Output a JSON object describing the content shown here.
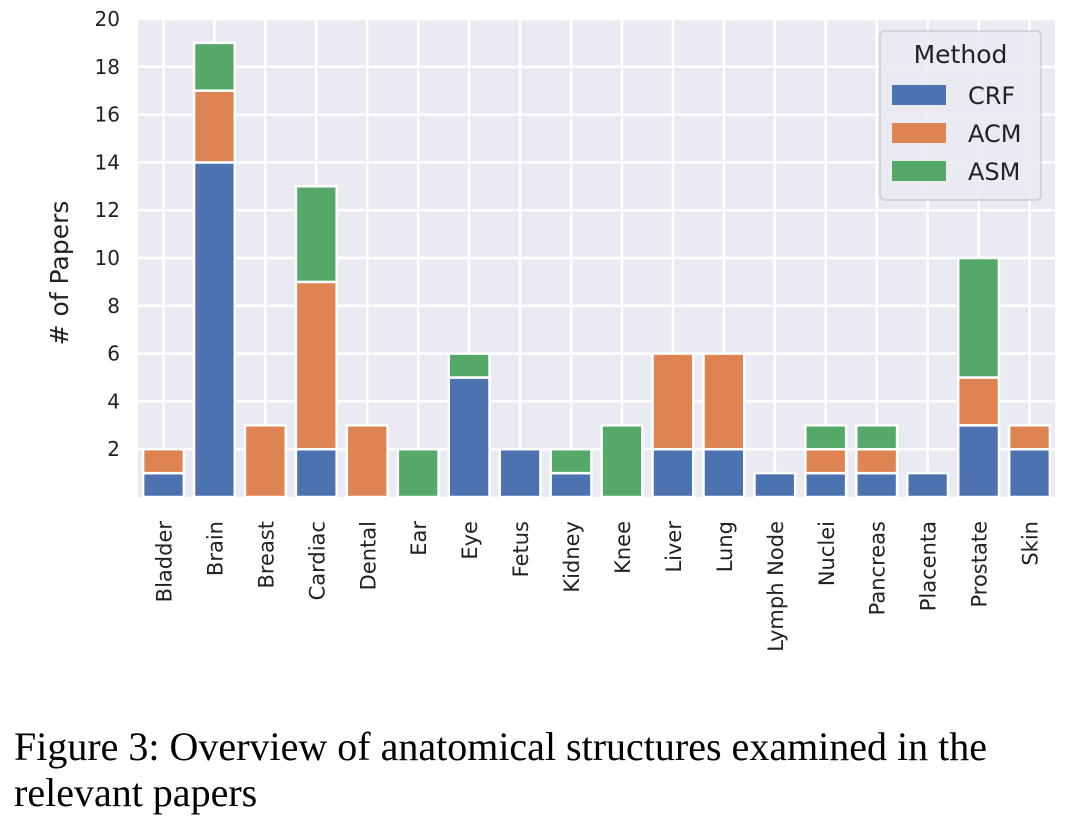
{
  "chart_data": {
    "type": "bar",
    "stacked": true,
    "categories": [
      "Bladder",
      "Brain",
      "Breast",
      "Cardiac",
      "Dental",
      "Ear",
      "Eye",
      "Fetus",
      "Kidney",
      "Knee",
      "Liver",
      "Lung",
      "Lymph Node",
      "Nuclei",
      "Pancreas",
      "Placenta",
      "Prostate",
      "Skin"
    ],
    "series": [
      {
        "name": "CRF",
        "color": "#4c72b0",
        "values": [
          1,
          14,
          0,
          2,
          0,
          0,
          5,
          2,
          1,
          0,
          2,
          2,
          1,
          1,
          1,
          1,
          3,
          2
        ]
      },
      {
        "name": "ACM",
        "color": "#dd8452",
        "values": [
          1,
          3,
          3,
          7,
          3,
          0,
          0,
          0,
          0,
          0,
          4,
          4,
          0,
          1,
          1,
          0,
          2,
          1
        ]
      },
      {
        "name": "ASM",
        "color": "#55a868",
        "values": [
          0,
          2,
          0,
          4,
          0,
          2,
          1,
          0,
          1,
          3,
          0,
          0,
          0,
          1,
          1,
          0,
          5,
          0
        ]
      }
    ],
    "ylabel": "# of Papers",
    "xlabel": "",
    "ylim": [
      0,
      20
    ],
    "yticks": [
      2,
      4,
      6,
      8,
      10,
      12,
      14,
      16,
      18,
      20
    ],
    "grid": true,
    "legend": {
      "title": "Method",
      "position": "top-right"
    },
    "background": "#eaeaf2"
  },
  "caption": "Figure 3: Overview of anatomical structures examined in the relevant papers"
}
